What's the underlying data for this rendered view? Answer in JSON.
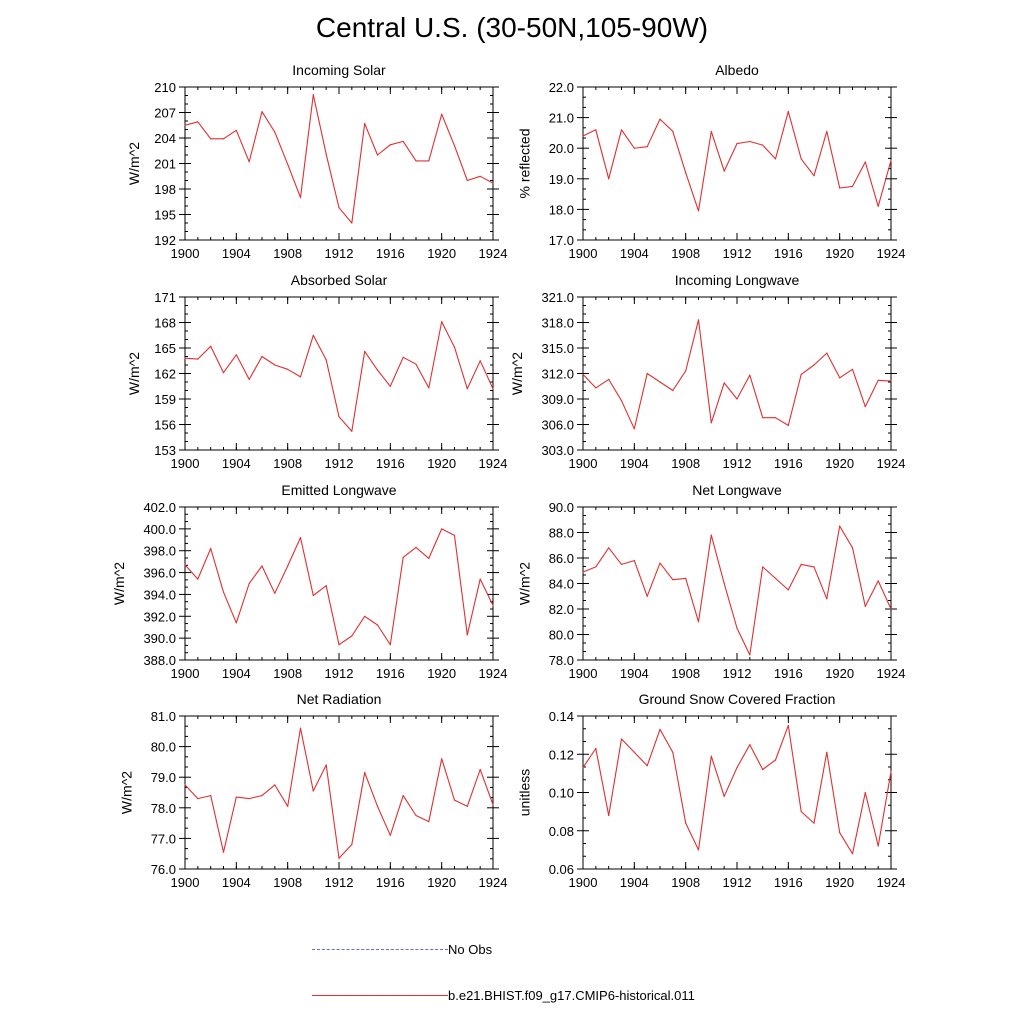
{
  "title": "Central U.S. (30-50N,105-90W)",
  "legend": [
    {
      "label": "No Obs",
      "color": "#6b6bd6",
      "style": "dashed"
    },
    {
      "label": "b.e21.BHIST.f09_g17.CMIP6-historical.011",
      "color": "#e03030",
      "style": "solid"
    }
  ],
  "chart_data": [
    {
      "type": "line",
      "title": "Incoming Solar",
      "xlabel": "",
      "ylabel": "W/m^2",
      "xlim": [
        1900,
        1924
      ],
      "ylim": [
        192,
        210
      ],
      "xticks": [
        1900,
        1904,
        1908,
        1912,
        1916,
        1920,
        1924
      ],
      "yticks": [
        192,
        195,
        198,
        201,
        204,
        207,
        210
      ],
      "ytick_labels": [
        "192",
        "195",
        "198",
        "201",
        "204",
        "207",
        "210"
      ],
      "line_color": "#e03030",
      "series": [
        {
          "name": "b.e21.BHIST.f09_g17.CMIP6-historical.011",
          "x": [
            1900,
            1901,
            1902,
            1903,
            1904,
            1905,
            1906,
            1907,
            1908,
            1909,
            1910,
            1911,
            1912,
            1913,
            1914,
            1915,
            1916,
            1917,
            1918,
            1919,
            1920,
            1921,
            1922,
            1923,
            1924
          ],
          "y": [
            205.5,
            205.9,
            203.9,
            203.9,
            204.9,
            201.2,
            207.1,
            204.7,
            200.9,
            197.0,
            209.1,
            202.1,
            195.8,
            194.0,
            205.7,
            202.0,
            203.2,
            203.6,
            201.3,
            201.3,
            206.8,
            203.1,
            199.0,
            199.5,
            198.7
          ]
        }
      ]
    },
    {
      "type": "line",
      "title": "Albedo",
      "xlabel": "",
      "ylabel": "% reflected",
      "xlim": [
        1900,
        1924
      ],
      "ylim": [
        17.0,
        22.0
      ],
      "xticks": [
        1900,
        1904,
        1908,
        1912,
        1916,
        1920,
        1924
      ],
      "yticks": [
        17,
        18,
        19,
        20,
        21,
        22
      ],
      "ytick_labels": [
        "17.0",
        "18.0",
        "19.0",
        "20.0",
        "21.0",
        "22.0"
      ],
      "line_color": "#e03030",
      "series": [
        {
          "name": "b.e21.BHIST.f09_g17.CMIP6-historical.011",
          "x": [
            1900,
            1901,
            1902,
            1903,
            1904,
            1905,
            1906,
            1907,
            1908,
            1909,
            1910,
            1911,
            1912,
            1913,
            1914,
            1915,
            1916,
            1917,
            1918,
            1919,
            1920,
            1921,
            1922,
            1923,
            1924
          ],
          "y": [
            20.4,
            20.6,
            19.0,
            20.6,
            20.0,
            20.05,
            20.95,
            20.55,
            19.2,
            17.95,
            20.55,
            19.25,
            20.15,
            20.22,
            20.1,
            19.65,
            21.2,
            19.65,
            19.1,
            20.55,
            18.7,
            18.75,
            19.55,
            18.1,
            19.6
          ]
        }
      ]
    },
    {
      "type": "line",
      "title": "Absorbed Solar",
      "xlabel": "",
      "ylabel": "W/m^2",
      "xlim": [
        1900,
        1924
      ],
      "ylim": [
        153,
        171
      ],
      "xticks": [
        1900,
        1904,
        1908,
        1912,
        1916,
        1920,
        1924
      ],
      "yticks": [
        153,
        156,
        159,
        162,
        165,
        168,
        171
      ],
      "ytick_labels": [
        "153",
        "156",
        "159",
        "162",
        "165",
        "168",
        "171"
      ],
      "line_color": "#e03030",
      "series": [
        {
          "name": "b.e21.BHIST.f09_g17.CMIP6-historical.011",
          "x": [
            1900,
            1901,
            1902,
            1903,
            1904,
            1905,
            1906,
            1907,
            1908,
            1909,
            1910,
            1911,
            1912,
            1913,
            1914,
            1915,
            1916,
            1917,
            1918,
            1919,
            1920,
            1921,
            1922,
            1923,
            1924
          ],
          "y": [
            163.8,
            163.7,
            165.2,
            162.1,
            164.2,
            161.3,
            164.0,
            163.0,
            162.5,
            161.6,
            166.5,
            163.6,
            156.9,
            155.2,
            164.6,
            162.4,
            160.5,
            163.9,
            163.1,
            160.3,
            168.1,
            165.1,
            160.2,
            163.5,
            160.2
          ]
        }
      ]
    },
    {
      "type": "line",
      "title": "Incoming Longwave",
      "xlabel": "",
      "ylabel": "W/m^2",
      "xlim": [
        1900,
        1924
      ],
      "ylim": [
        303.0,
        321.0
      ],
      "xticks": [
        1900,
        1904,
        1908,
        1912,
        1916,
        1920,
        1924
      ],
      "yticks": [
        303,
        306,
        309,
        312,
        315,
        318,
        321
      ],
      "ytick_labels": [
        "303.0",
        "306.0",
        "309.0",
        "312.0",
        "315.0",
        "318.0",
        "321.0"
      ],
      "line_color": "#e03030",
      "series": [
        {
          "name": "b.e21.BHIST.f09_g17.CMIP6-historical.011",
          "x": [
            1900,
            1901,
            1902,
            1903,
            1904,
            1905,
            1906,
            1907,
            1908,
            1909,
            1910,
            1911,
            1912,
            1913,
            1914,
            1915,
            1916,
            1917,
            1918,
            1919,
            1920,
            1921,
            1922,
            1923,
            1924
          ],
          "y": [
            311.9,
            310.3,
            311.3,
            308.8,
            305.5,
            312.0,
            311.0,
            310.0,
            312.3,
            318.3,
            306.2,
            310.9,
            309.0,
            311.8,
            306.8,
            306.8,
            305.9,
            311.9,
            313.0,
            314.4,
            311.5,
            312.5,
            308.1,
            311.2,
            311.1
          ]
        }
      ]
    },
    {
      "type": "line",
      "title": "Emitted Longwave",
      "xlabel": "",
      "ylabel": "W/m^2",
      "xlim": [
        1900,
        1924
      ],
      "ylim": [
        388.0,
        402.0
      ],
      "xticks": [
        1900,
        1904,
        1908,
        1912,
        1916,
        1920,
        1924
      ],
      "yticks": [
        388,
        390,
        392,
        394,
        396,
        398,
        400,
        402
      ],
      "ytick_labels": [
        "388.0",
        "390.0",
        "392.0",
        "394.0",
        "396.0",
        "398.0",
        "400.0",
        "402.0"
      ],
      "line_color": "#e03030",
      "series": [
        {
          "name": "b.e21.BHIST.f09_g17.CMIP6-historical.011",
          "x": [
            1900,
            1901,
            1902,
            1903,
            1904,
            1905,
            1906,
            1907,
            1908,
            1909,
            1910,
            1911,
            1912,
            1913,
            1914,
            1915,
            1916,
            1917,
            1918,
            1919,
            1920,
            1921,
            1922,
            1923,
            1924
          ],
          "y": [
            396.7,
            395.4,
            398.2,
            394.2,
            391.4,
            395.0,
            396.6,
            394.1,
            396.6,
            399.2,
            393.9,
            394.8,
            389.4,
            390.2,
            392.0,
            391.2,
            389.4,
            397.4,
            398.3,
            397.3,
            400.0,
            399.4,
            390.3,
            395.4,
            393.0
          ]
        }
      ]
    },
    {
      "type": "line",
      "title": "Net Longwave",
      "xlabel": "",
      "ylabel": "W/m^2",
      "xlim": [
        1900,
        1924
      ],
      "ylim": [
        78.0,
        90.0
      ],
      "xticks": [
        1900,
        1904,
        1908,
        1912,
        1916,
        1920,
        1924
      ],
      "yticks": [
        78,
        80,
        82,
        84,
        86,
        88,
        90
      ],
      "ytick_labels": [
        "78.0",
        "80.0",
        "82.0",
        "84.0",
        "86.0",
        "88.0",
        "90.0"
      ],
      "line_color": "#e03030",
      "series": [
        {
          "name": "b.e21.BHIST.f09_g17.CMIP6-historical.011",
          "x": [
            1900,
            1901,
            1902,
            1903,
            1904,
            1905,
            1906,
            1907,
            1908,
            1909,
            1910,
            1911,
            1912,
            1913,
            1914,
            1915,
            1916,
            1917,
            1918,
            1919,
            1920,
            1921,
            1922,
            1923,
            1924
          ],
          "y": [
            84.9,
            85.3,
            86.8,
            85.5,
            85.8,
            83.0,
            85.6,
            84.3,
            84.4,
            81.0,
            87.8,
            84.0,
            80.5,
            78.4,
            85.3,
            84.4,
            83.5,
            85.5,
            85.3,
            82.8,
            88.5,
            86.8,
            82.2,
            84.2,
            82.0
          ]
        }
      ]
    },
    {
      "type": "line",
      "title": "Net Radiation",
      "xlabel": "",
      "ylabel": "W/m^2",
      "xlim": [
        1900,
        1924
      ],
      "ylim": [
        76.0,
        81.0
      ],
      "xticks": [
        1900,
        1904,
        1908,
        1912,
        1916,
        1920,
        1924
      ],
      "yticks": [
        76,
        77,
        78,
        79,
        80,
        81
      ],
      "ytick_labels": [
        "76.0",
        "77.0",
        "78.0",
        "79.0",
        "80.0",
        "81.0"
      ],
      "line_color": "#e03030",
      "series": [
        {
          "name": "b.e21.BHIST.f09_g17.CMIP6-historical.011",
          "x": [
            1900,
            1901,
            1902,
            1903,
            1904,
            1905,
            1906,
            1907,
            1908,
            1909,
            1910,
            1911,
            1912,
            1913,
            1914,
            1915,
            1916,
            1917,
            1918,
            1919,
            1920,
            1921,
            1922,
            1923,
            1924
          ],
          "y": [
            78.75,
            78.3,
            78.4,
            76.55,
            78.35,
            78.3,
            78.4,
            78.75,
            78.05,
            80.6,
            78.55,
            79.4,
            76.35,
            76.8,
            79.15,
            78.05,
            77.1,
            78.4,
            77.75,
            77.55,
            79.6,
            78.25,
            78.05,
            79.25,
            78.1
          ]
        }
      ]
    },
    {
      "type": "line",
      "title": "Ground Snow Covered Fraction",
      "xlabel": "",
      "ylabel": "unitless",
      "xlim": [
        1900,
        1924
      ],
      "ylim": [
        0.06,
        0.14
      ],
      "xticks": [
        1900,
        1904,
        1908,
        1912,
        1916,
        1920,
        1924
      ],
      "yticks": [
        0.06,
        0.08,
        0.1,
        0.12,
        0.14
      ],
      "ytick_labels": [
        "0.06",
        "0.08",
        "0.10",
        "0.12",
        "0.14"
      ],
      "line_color": "#e03030",
      "series": [
        {
          "name": "b.e21.BHIST.f09_g17.CMIP6-historical.011",
          "x": [
            1900,
            1901,
            1902,
            1903,
            1904,
            1905,
            1906,
            1907,
            1908,
            1909,
            1910,
            1911,
            1912,
            1913,
            1914,
            1915,
            1916,
            1917,
            1918,
            1919,
            1920,
            1921,
            1922,
            1923,
            1924
          ],
          "y": [
            0.113,
            0.123,
            0.088,
            0.128,
            0.121,
            0.114,
            0.133,
            0.121,
            0.084,
            0.07,
            0.119,
            0.098,
            0.113,
            0.125,
            0.112,
            0.117,
            0.135,
            0.09,
            0.084,
            0.121,
            0.079,
            0.068,
            0.1,
            0.072,
            0.111
          ]
        }
      ]
    }
  ]
}
